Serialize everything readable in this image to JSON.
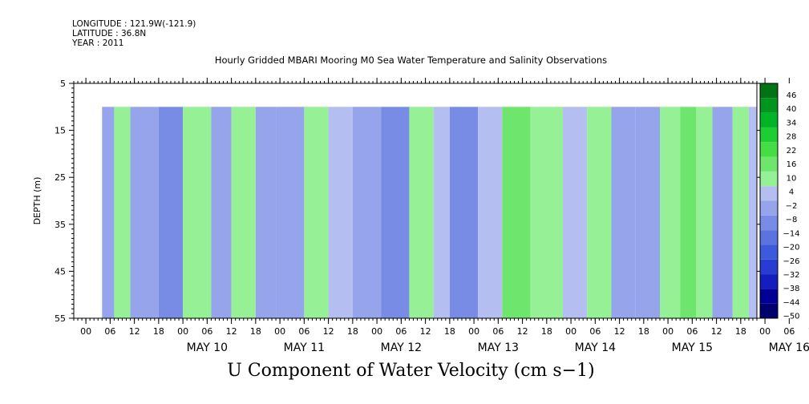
{
  "header": {
    "longitude": "LONGITUDE : 121.9W(-121.9)",
    "latitude": "LATITUDE : 36.8N",
    "year": "YEAR : 2011"
  },
  "chart_data": {
    "type": "heatmap",
    "title": "Hourly Gridded MBARI Mooring M0 Sea Water Temperature and Salinity Observations",
    "xlabel": "",
    "ylabel": "DEPTH (m)",
    "variable_label": "U Component of Water Velocity (cm s−1)",
    "y_ticks": [
      5,
      15,
      25,
      35,
      45,
      55
    ],
    "ylim": [
      55,
      5
    ],
    "data_depth_range": [
      10,
      55
    ],
    "x_hour_ticks": [
      "00",
      "06",
      "12",
      "18",
      "00",
      "06",
      "12",
      "18",
      "00",
      "06",
      "12",
      "18",
      "00",
      "06",
      "12",
      "18",
      "00",
      "06",
      "12",
      "18",
      "00",
      "06",
      "12",
      "18",
      "00",
      "06",
      "12",
      "18",
      "00",
      "06",
      "12",
      "18"
    ],
    "x_day_labels": [
      "MAY 10",
      "MAY 11",
      "MAY 12",
      "MAY 13",
      "MAY 14",
      "MAY 15",
      "MAY 16"
    ],
    "colorbar": {
      "levels": [
        -50,
        -44,
        -38,
        -32,
        -26,
        -20,
        -14,
        -8,
        -2,
        4,
        10,
        16,
        22,
        28,
        34,
        40,
        46
      ],
      "labels": [
        "46",
        "40",
        "34",
        "28",
        "22",
        "16",
        "10",
        "4",
        "−2",
        "−8",
        "−14",
        "−20",
        "−26",
        "−32",
        "−38",
        "−44",
        "−50"
      ]
    },
    "bands": [
      {
        "hour_start": 4,
        "hour_end": 7,
        "value": -3
      },
      {
        "hour_start": 7,
        "hour_end": 11,
        "value": 6
      },
      {
        "hour_start": 11,
        "hour_end": 18,
        "value": -8
      },
      {
        "hour_start": 18,
        "hour_end": 24,
        "value": -12
      },
      {
        "hour_start": 24,
        "hour_end": 31,
        "value": 5
      },
      {
        "hour_start": 31,
        "hour_end": 36,
        "value": -4
      },
      {
        "hour_start": 36,
        "hour_end": 42,
        "value": 4
      },
      {
        "hour_start": 42,
        "hour_end": 47,
        "value": -6
      },
      {
        "hour_start": 47,
        "hour_end": 54,
        "value": -3
      },
      {
        "hour_start": 54,
        "hour_end": 60,
        "value": 7
      },
      {
        "hour_start": 60,
        "hour_end": 66,
        "value": 3
      },
      {
        "hour_start": 66,
        "hour_end": 73,
        "value": -6
      },
      {
        "hour_start": 73,
        "hour_end": 80,
        "value": -9
      },
      {
        "hour_start": 80,
        "hour_end": 86,
        "value": 5
      },
      {
        "hour_start": 86,
        "hour_end": 90,
        "value": 1
      },
      {
        "hour_start": 90,
        "hour_end": 97,
        "value": -10
      },
      {
        "hour_start": 97,
        "hour_end": 103,
        "value": 2
      },
      {
        "hour_start": 103,
        "hour_end": 110,
        "value": 13
      },
      {
        "hour_start": 110,
        "hour_end": 118,
        "value": 6
      },
      {
        "hour_start": 118,
        "hour_end": 124,
        "value": 3
      },
      {
        "hour_start": 124,
        "hour_end": 130,
        "value": 8
      },
      {
        "hour_start": 130,
        "hour_end": 136,
        "value": -6
      },
      {
        "hour_start": 136,
        "hour_end": 142,
        "value": -3
      },
      {
        "hour_start": 142,
        "hour_end": 147,
        "value": 4
      },
      {
        "hour_start": 147,
        "hour_end": 151,
        "value": 13
      },
      {
        "hour_start": 151,
        "hour_end": 155,
        "value": 5
      },
      {
        "hour_start": 155,
        "hour_end": 160,
        "value": -4
      },
      {
        "hour_start": 160,
        "hour_end": 164,
        "value": 9
      },
      {
        "hour_start": 164,
        "hour_end": 166,
        "value": 3
      }
    ],
    "grid": false
  }
}
